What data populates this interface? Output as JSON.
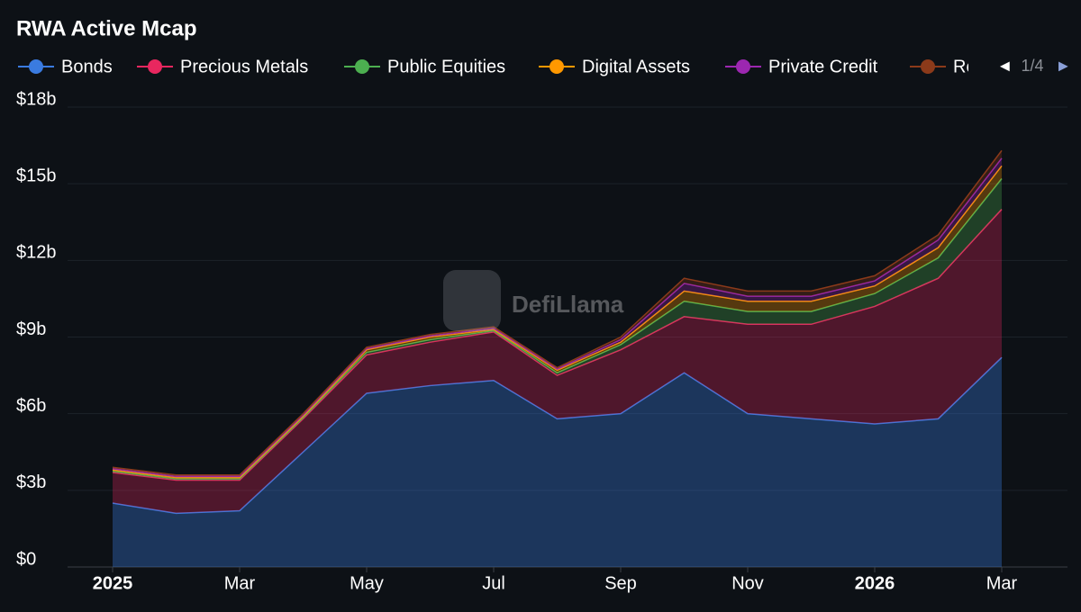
{
  "chart_data": {
    "type": "stacked-area",
    "title": "RWA Active Mcap",
    "watermark": "DefiLlama",
    "legend_page": "1/4",
    "x": [
      "2025-01",
      "2025-02",
      "2025-03",
      "2025-04",
      "2025-05",
      "2025-06",
      "2025-07",
      "2025-08",
      "2025-09",
      "2025-10",
      "2025-11",
      "2025-12",
      "2026-01",
      "2026-02",
      "2026-03"
    ],
    "xticks": [
      {
        "value": "2025-01",
        "label": "2025"
      },
      {
        "value": "2025-03",
        "label": "Mar"
      },
      {
        "value": "2025-05",
        "label": "May"
      },
      {
        "value": "2025-07",
        "label": "Jul"
      },
      {
        "value": "2025-09",
        "label": "Sep"
      },
      {
        "value": "2025-11",
        "label": "Nov"
      },
      {
        "value": "2026-01",
        "label": "2026"
      },
      {
        "value": "2026-03",
        "label": "Mar"
      }
    ],
    "ylim": [
      0,
      18
    ],
    "yticks": [
      {
        "value": 0,
        "label": "$0"
      },
      {
        "value": 3,
        "label": "$3b"
      },
      {
        "value": 6,
        "label": "$6b"
      },
      {
        "value": 9,
        "label": "$9b"
      },
      {
        "value": 12,
        "label": "$12b"
      },
      {
        "value": 15,
        "label": "$15b"
      },
      {
        "value": 18,
        "label": "$18b"
      }
    ],
    "series": [
      {
        "name": "Bonds",
        "color": "#3a7be0",
        "values": [
          2.5,
          2.1,
          2.2,
          4.5,
          6.8,
          7.1,
          7.3,
          5.8,
          6.0,
          7.6,
          6.0,
          5.8,
          5.6,
          5.8,
          8.2
        ]
      },
      {
        "name": "Precious Metals",
        "color": "#e8275f",
        "values": [
          1.2,
          1.3,
          1.2,
          1.3,
          1.5,
          1.7,
          1.9,
          1.7,
          2.5,
          2.2,
          3.5,
          3.7,
          4.6,
          5.5,
          5.8
        ]
      },
      {
        "name": "Public Equities",
        "color": "#4caf50",
        "values": [
          0.05,
          0.05,
          0.05,
          0.05,
          0.1,
          0.1,
          0.05,
          0.1,
          0.2,
          0.6,
          0.5,
          0.5,
          0.5,
          0.8,
          1.2
        ]
      },
      {
        "name": "Digital Assets",
        "color": "#ff9800",
        "values": [
          0.05,
          0.05,
          0.05,
          0.05,
          0.1,
          0.1,
          0.05,
          0.1,
          0.1,
          0.4,
          0.4,
          0.4,
          0.3,
          0.4,
          0.5
        ]
      },
      {
        "name": "Private Credit",
        "color": "#9c27b0",
        "values": [
          0.05,
          0.05,
          0.05,
          0.05,
          0.05,
          0.05,
          0.05,
          0.05,
          0.1,
          0.3,
          0.2,
          0.2,
          0.2,
          0.3,
          0.3
        ]
      },
      {
        "name": "Re",
        "color": "#8b3a1a",
        "values": [
          0.05,
          0.05,
          0.05,
          0.05,
          0.05,
          0.05,
          0.05,
          0.05,
          0.1,
          0.2,
          0.2,
          0.2,
          0.2,
          0.2,
          0.3
        ]
      }
    ]
  }
}
